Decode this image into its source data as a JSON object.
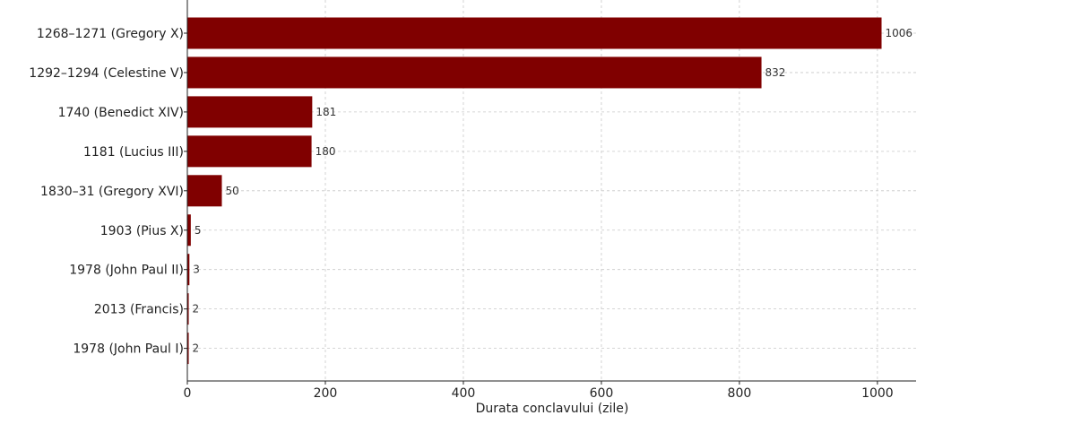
{
  "chart_data": {
    "type": "bar",
    "orientation": "horizontal",
    "categories": [
      "1268–1271 (Gregory X)",
      "1292–1294 (Celestine V)",
      "1740 (Benedict XIV)",
      "1181 (Lucius III)",
      "1830–31 (Gregory XVI)",
      "1903 (Pius X)",
      "1978 (John Paul II)",
      "2013 (Francis)",
      "1978 (John Paul I)"
    ],
    "values": [
      1006,
      832,
      181,
      180,
      50,
      5,
      3,
      2,
      2
    ],
    "value_labels": [
      "1006",
      "832",
      "181",
      "180",
      "50",
      "5",
      "3",
      "2",
      "2"
    ],
    "xlabel": "Durata conclavului (zile)",
    "ylabel": "",
    "title": "",
    "xlim": [
      0,
      1056
    ],
    "xticks": [
      0,
      200,
      400,
      600,
      800,
      1000
    ],
    "xtick_labels": [
      "0",
      "200",
      "400",
      "600",
      "800",
      "1000"
    ],
    "grid": true,
    "bar_color": "#800000"
  }
}
